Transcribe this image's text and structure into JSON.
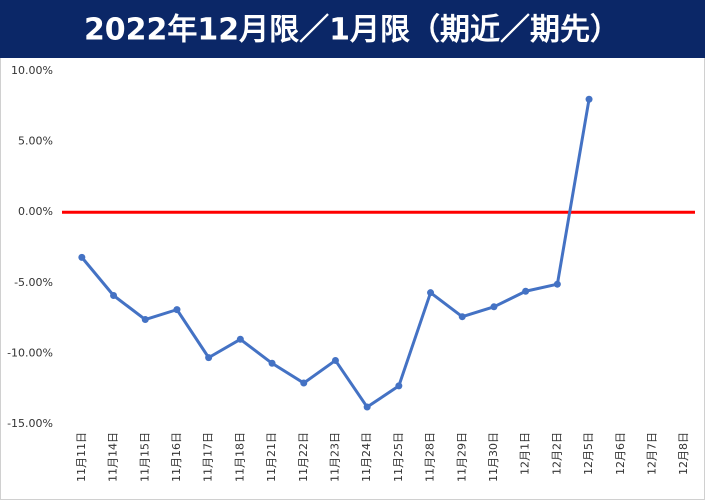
{
  "chart_data": {
    "type": "line",
    "title": "2022年12月限／1月限（期近／期先）",
    "categories": [
      "11月11日",
      "11月14日",
      "11月15日",
      "11月16日",
      "11月17日",
      "11月18日",
      "11月21日",
      "11月22日",
      "11月23日",
      "11月24日",
      "11月25日",
      "11月28日",
      "11月29日",
      "11月30日",
      "12月1日",
      "12月2日",
      "12月5日",
      "12月6日",
      "12月7日",
      "12月8日"
    ],
    "series": [
      {
        "name": "期近／期先",
        "color": "#4472c4",
        "values": [
          -3.2,
          -5.9,
          -7.6,
          -6.9,
          -10.3,
          -9.0,
          -10.7,
          -12.1,
          -10.5,
          -13.8,
          -12.3,
          -5.7,
          -7.4,
          -6.7,
          -5.6,
          -5.1,
          8.0,
          null,
          null,
          null
        ]
      }
    ],
    "ylim": [
      -15,
      10
    ],
    "yticks": [
      {
        "value": -15,
        "label": "-15.00%"
      },
      {
        "value": -10,
        "label": "-10.00%"
      },
      {
        "value": -5,
        "label": "-5.00%"
      },
      {
        "value": 0,
        "label": "0.00%"
      },
      {
        "value": 5,
        "label": "5.00%"
      },
      {
        "value": 10,
        "label": "10.00%"
      }
    ],
    "zero_line": {
      "value": 0,
      "color": "#ff0000"
    },
    "grid": false
  }
}
